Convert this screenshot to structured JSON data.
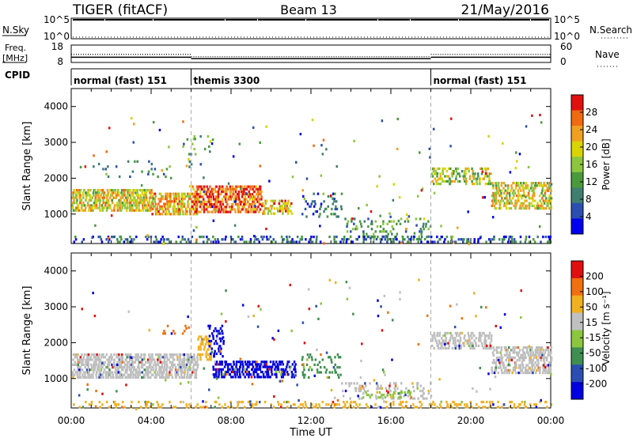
{
  "header": {
    "left": "TIGER (fitACF)",
    "center": "Beam 13",
    "right": "21/May/2016"
  },
  "top_panels": {
    "nsky_label": "N.Sky",
    "nsky_ticks": [
      "10^5",
      "10^0"
    ],
    "nsearch_label": "N.Search",
    "freq_label_1": "Freq.",
    "freq_label_2": "[MHz]",
    "freq_ticks": [
      "18",
      "8"
    ],
    "nave_label": "Nave",
    "nave_ticks": [
      "60",
      "0"
    ],
    "cpid_label": "CPID",
    "cpid_segments": [
      {
        "label": "normal (fast) 151",
        "start_hour": 0,
        "end_hour": 6
      },
      {
        "label": "themis 3300",
        "start_hour": 6,
        "end_hour": 18
      },
      {
        "label": "normal (fast) 151",
        "start_hour": 18,
        "end_hour": 24
      }
    ],
    "freq_mhz_series": [
      {
        "start_hour": 0,
        "end_hour": 6,
        "value": 11.0
      },
      {
        "start_hour": 6,
        "end_hour": 10,
        "value": 10.2
      },
      {
        "start_hour": 10,
        "end_hour": 18,
        "value": 10.2
      },
      {
        "start_hour": 18,
        "end_hour": 24,
        "value": 11.0
      }
    ],
    "nave_series": [
      {
        "start_hour": 0,
        "end_hour": 6,
        "value": 28
      },
      {
        "start_hour": 6,
        "end_hour": 18,
        "value": 20
      },
      {
        "start_hour": 18,
        "end_hour": 24,
        "value": 28
      }
    ]
  },
  "chart_data": [
    {
      "type": "heatmap",
      "quantity": "Power",
      "xlabel": "",
      "ylabel": "Slant Range [km]",
      "xlim": [
        0,
        24
      ],
      "ylim": [
        180,
        4500
      ],
      "yticks": [
        1000,
        2000,
        3000,
        4000
      ],
      "colorbar": {
        "label": "Power [dB]",
        "ticks": [
          "28",
          "24",
          "20",
          "16",
          "12",
          "8",
          "4"
        ],
        "colors": [
          "#0000ee",
          "#2a4fb0",
          "#3f7f70",
          "#4a9a3c",
          "#8cc63f",
          "#d8d400",
          "#f0a020",
          "#f06a10",
          "#e01010"
        ],
        "range": [
          0,
          32
        ]
      },
      "echo_bands": [
        {
          "h0": 0.0,
          "h1": 4.0,
          "r0": 1100,
          "r1": 1700,
          "level": 0.62,
          "density": 0.85
        },
        {
          "h0": 4.0,
          "h1": 6.3,
          "r0": 1000,
          "r1": 1600,
          "level": 0.7,
          "density": 0.85
        },
        {
          "h0": 6.0,
          "h1": 9.5,
          "r0": 1000,
          "r1": 1800,
          "level": 0.85,
          "density": 0.8
        },
        {
          "h0": 9.5,
          "h1": 11.0,
          "r0": 950,
          "r1": 1400,
          "level": 0.7,
          "density": 0.6
        },
        {
          "h0": 11.5,
          "h1": 13.5,
          "r0": 900,
          "r1": 1600,
          "level": 0.25,
          "density": 0.25
        },
        {
          "h0": 13.5,
          "h1": 18.0,
          "r0": 250,
          "r1": 900,
          "level": 0.35,
          "density": 0.25
        },
        {
          "h0": 18.0,
          "h1": 21.0,
          "r0": 1800,
          "r1": 2300,
          "level": 0.55,
          "density": 0.6
        },
        {
          "h0": 21.0,
          "h1": 24.0,
          "r0": 1100,
          "r1": 1900,
          "level": 0.6,
          "density": 0.7
        },
        {
          "h0": 0.0,
          "h1": 24.0,
          "r0": 190,
          "r1": 400,
          "level": 0.22,
          "density": 0.35
        },
        {
          "h0": 1.0,
          "h1": 5.0,
          "r0": 2000,
          "r1": 2500,
          "level": 0.3,
          "density": 0.12
        },
        {
          "h0": 5.5,
          "h1": 7.0,
          "r0": 2200,
          "r1": 3200,
          "level": 0.4,
          "density": 0.12
        }
      ]
    },
    {
      "type": "heatmap",
      "quantity": "Velocity",
      "xlabel": "Time UT",
      "ylabel": "Slant Range [km]",
      "xlim": [
        0,
        24
      ],
      "ylim": [
        180,
        4500
      ],
      "xticks": [
        "00:00",
        "04:00",
        "08:00",
        "12:00",
        "16:00",
        "20:00",
        "00:00"
      ],
      "yticks": [
        1000,
        2000,
        3000,
        4000
      ],
      "colorbar": {
        "label": "Velocity [m s⁻¹]",
        "ticks": [
          "200",
          "100",
          "50",
          "15",
          "-15",
          "-50",
          "-100",
          "-200"
        ],
        "colors": [
          "#0000e0",
          "#2a4fb0",
          "#3f8f50",
          "#8cc63f",
          "#c0c0c0",
          "#f0b020",
          "#f07010",
          "#e01010"
        ]
      },
      "echo_bands": [
        {
          "h0": 0.0,
          "h1": 6.3,
          "r0": 1000,
          "r1": 1700,
          "color": "#bdbdbd",
          "density": 0.85
        },
        {
          "h0": 6.3,
          "h1": 7.0,
          "r0": 1500,
          "r1": 2200,
          "color": "#f0b020",
          "density": 0.5
        },
        {
          "h0": 7.0,
          "h1": 11.2,
          "r0": 1000,
          "r1": 1500,
          "color": "#0000e0",
          "density": 0.75
        },
        {
          "h0": 6.8,
          "h1": 7.6,
          "r0": 1600,
          "r1": 2500,
          "color": "#0000e0",
          "density": 0.45
        },
        {
          "h0": 11.5,
          "h1": 13.5,
          "r0": 1000,
          "r1": 1700,
          "color": "#3f8f50",
          "density": 0.3
        },
        {
          "h0": 13.5,
          "h1": 18.0,
          "r0": 400,
          "r1": 900,
          "color": "#bdbdbd",
          "density": 0.3
        },
        {
          "h0": 14.5,
          "h1": 17.0,
          "r0": 450,
          "r1": 650,
          "color": "#8cc63f",
          "density": 0.4
        },
        {
          "h0": 18.0,
          "h1": 21.0,
          "r0": 1800,
          "r1": 2300,
          "color": "#bdbdbd",
          "density": 0.65
        },
        {
          "h0": 21.0,
          "h1": 24.0,
          "r0": 1100,
          "r1": 1900,
          "color": "#bdbdbd",
          "density": 0.7
        },
        {
          "h0": 0.0,
          "h1": 24.0,
          "r0": 190,
          "r1": 380,
          "color": "#f0b020",
          "density": 0.3
        },
        {
          "h0": 4.0,
          "h1": 6.0,
          "r0": 2200,
          "r1": 2500,
          "color": "#f07010",
          "density": 0.12
        }
      ]
    }
  ]
}
